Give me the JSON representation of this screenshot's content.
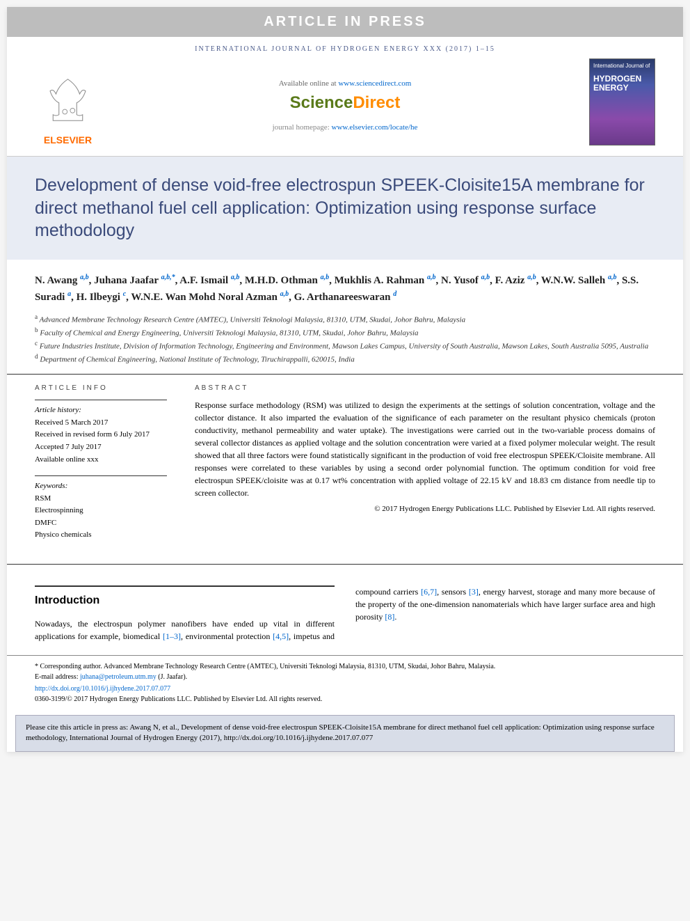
{
  "banner": "ARTICLE IN PRESS",
  "journal_header": "INTERNATIONAL JOURNAL OF HYDROGEN ENERGY XXX (2017) 1–15",
  "header": {
    "available": "Available online at ",
    "available_link": "www.sciencedirect.com",
    "sd_science": "Science",
    "sd_direct": "Direct",
    "homepage_label": "journal homepage: ",
    "homepage_link": "www.elsevier.com/locate/he",
    "elsevier": "ELSEVIER",
    "cover_top": "International Journal of",
    "cover_title": "HYDROGEN ENERGY"
  },
  "title": "Development of dense void-free electrospun SPEEK-Cloisite15A membrane for direct methanol fuel cell application: Optimization using response surface methodology",
  "authors_html": "N. Awang <sup>a,b</sup>, Juhana Jaafar <sup>a,b,*</sup>, A.F. Ismail <sup>a,b</sup>, M.H.D. Othman <sup>a,b</sup>, Mukhlis A. Rahman <sup>a,b</sup>, N. Yusof <sup>a,b</sup>, F. Aziz <sup>a,b</sup>, W.N.W. Salleh <sup>a,b</sup>, S.S. Suradi <sup>a</sup>, H. Ilbeygi <sup>c</sup>, W.N.E. Wan Mohd Noral Azman <sup>a,b</sup>, G. Arthanareeswaran <sup>d</sup>",
  "affiliations": {
    "a": "Advanced Membrane Technology Research Centre (AMTEC), Universiti Teknologi Malaysia, 81310, UTM, Skudai, Johor Bahru, Malaysia",
    "b": "Faculty of Chemical and Energy Engineering, Universiti Teknologi Malaysia, 81310, UTM, Skudai, Johor Bahru, Malaysia",
    "c": "Future Industries Institute, Division of Information Technology, Engineering and Environment, Mawson Lakes Campus, University of South Australia, Mawson Lakes, South Australia 5095, Australia",
    "d": "Department of Chemical Engineering, National Institute of Technology, Tiruchirappalli, 620015, India"
  },
  "info": {
    "head": "ARTICLE INFO",
    "history_label": "Article history:",
    "received": "Received 5 March 2017",
    "revised": "Received in revised form 6 July 2017",
    "accepted": "Accepted 7 July 2017",
    "online": "Available online xxx",
    "keywords_label": "Keywords:",
    "keywords": [
      "RSM",
      "Electrospinning",
      "DMFC",
      "Physico chemicals"
    ]
  },
  "abstract": {
    "head": "ABSTRACT",
    "text": "Response surface methodology (RSM) was utilized to design the experiments at the settings of solution concentration, voltage and the collector distance. It also imparted the evaluation of the significance of each parameter on the resultant physico chemicals (proton conductivity, methanol permeability and water uptake). The investigations were carried out in the two-variable process domains of several collector distances as applied voltage and the solution concentration were varied at a fixed polymer molecular weight. The result showed that all three factors were found statistically significant in the production of void free electrospun SPEEK/Cloisite membrane. All responses were correlated to these variables by using a second order polynomial function. The optimum condition for void free electrospun SPEEK/cloisite was at 0.17 wt% concentration with applied voltage of 22.15 kV and 18.83 cm distance from needle tip to screen collector.",
    "copyright": "© 2017 Hydrogen Energy Publications LLC. Published by Elsevier Ltd. All rights reserved."
  },
  "introduction": {
    "head": "Introduction",
    "p1": "Nowadays, the electrospun polymer nanofibers have ended up vital in different applications for example, biomedical ",
    "refs1": "[1–3]",
    "p2": ", environmental protection ",
    "refs2": "[4,5]",
    "p3": ", impetus and compound carriers ",
    "refs3": "[6,7]",
    "p4": ", sensors ",
    "refs4": "[3]",
    "p5": ", energy harvest, storage and many more because of the property of the one-dimension nanomaterials which have larger surface area and high porosity ",
    "refs5": "[8]",
    "p6": "."
  },
  "footer": {
    "corresponding": "* Corresponding author. Advanced Membrane Technology Research Centre (AMTEC), Universiti Teknologi Malaysia, 81310, UTM, Skudai, Johor Bahru, Malaysia.",
    "email_label": "E-mail address: ",
    "email": "juhana@petroleum.utm.my",
    "email_suffix": " (J. Jaafar).",
    "doi": "http://dx.doi.org/10.1016/j.ijhydene.2017.07.077",
    "issn_line": "0360-3199/© 2017 Hydrogen Energy Publications LLC. Published by Elsevier Ltd. All rights reserved."
  },
  "cite_box": "Please cite this article in press as: Awang N, et al., Development of dense void-free electrospun SPEEK-Cloisite15A membrane for direct methanol fuel cell application: Optimization using response surface methodology, International Journal of Hydrogen Energy (2017), http://dx.doi.org/10.1016/j.ijhydene.2017.07.077"
}
